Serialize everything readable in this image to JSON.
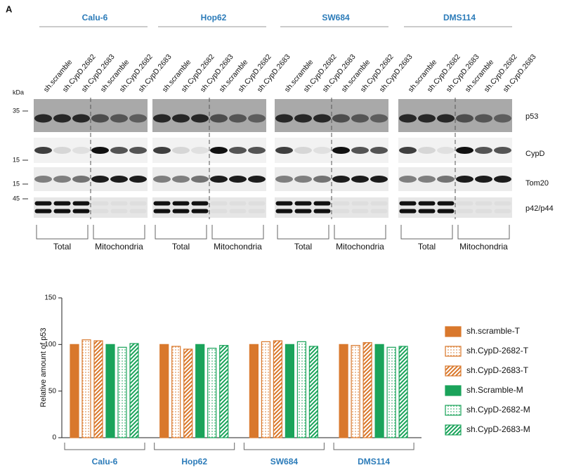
{
  "panel_label": "A",
  "blot": {
    "cell_lines": [
      "Calu-6",
      "Hop62",
      "SW684",
      "DMS114"
    ],
    "lanes": [
      "sh.scramble",
      "sh.CypD.2682",
      "sh.CypD.2683",
      "sh.scramble",
      "sh.CypD.2682",
      "sh.CypD.2683"
    ],
    "kda_label": "kDa",
    "markers": [
      "35",
      "15",
      "15",
      "45"
    ],
    "proteins": [
      "p53",
      "CypD",
      "Tom20",
      "p42/p44"
    ],
    "fractions": [
      "Total",
      "Mitochondria"
    ]
  },
  "chart_data": {
    "type": "bar",
    "y_label": "Relative  amount of p53",
    "categories": [
      "Calu-6",
      "Hop62",
      "SW684",
      "DMS114"
    ],
    "ylim": [
      0,
      150
    ],
    "yticks": [
      0,
      50,
      100,
      150
    ],
    "series": [
      {
        "name": "sh.scramble-T",
        "color": "#d9782c",
        "pattern": "solid",
        "values": [
          100,
          100,
          100,
          100
        ]
      },
      {
        "name": "sh.CypD-2682-T",
        "color": "#d9782c",
        "pattern": "dots",
        "values": [
          105,
          98,
          103,
          99
        ]
      },
      {
        "name": "sh.CypD-2683-T",
        "color": "#d9782c",
        "pattern": "stripes",
        "values": [
          104,
          95,
          104,
          102
        ]
      },
      {
        "name": "sh.Scramble-M",
        "color": "#1aa35a",
        "pattern": "solid",
        "values": [
          100,
          100,
          100,
          100
        ]
      },
      {
        "name": "sh.CypD-2682-M",
        "color": "#1aa35a",
        "pattern": "dots",
        "values": [
          97,
          96,
          103,
          97
        ]
      },
      {
        "name": "sh.CypD-2683-M",
        "color": "#1aa35a",
        "pattern": "stripes",
        "values": [
          101,
          99,
          98,
          98
        ]
      }
    ]
  }
}
